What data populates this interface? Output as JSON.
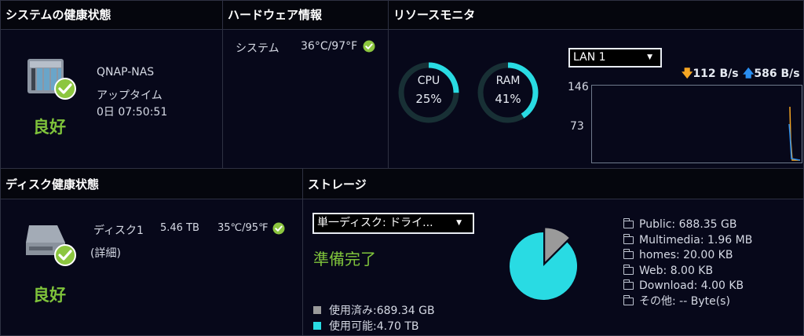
{
  "system_health": {
    "title": "システムの健康状態",
    "device_name": "QNAP-NAS",
    "uptime_label": "アップタイム",
    "uptime_value": "0日 07:50:51",
    "status": "良好"
  },
  "hardware": {
    "title": "ハードウェア情報",
    "system_label": "システム",
    "system_temp": "36°C/97°F"
  },
  "resource_monitor": {
    "title": "リソースモニタ",
    "cpu_label": "CPU",
    "cpu_value": "25%",
    "cpu_pct": 25,
    "ram_label": "RAM",
    "ram_value": "41%",
    "ram_pct": 41,
    "network_select": "LAN 1",
    "download_rate": "112 B/s",
    "upload_rate": "586 B/s",
    "y_max_label": "146",
    "y_mid_label": "73"
  },
  "disk_health": {
    "title": "ディスク健康状態",
    "disk_name": "ディスク1",
    "disk_size": "5.46 TB",
    "disk_temp": "35℃/95℉",
    "details_link": "(詳細)",
    "status": "良好"
  },
  "storage": {
    "title": "ストレージ",
    "volume_select": "単一ディスク: ドライ...",
    "status": "準備完了",
    "used_label": "使用済み:689.34 GB",
    "free_label": "使用可能:4.70 TB",
    "used_pct": 12.5,
    "folders": [
      "Public: 688.35 GB",
      "Multimedia: 1.96 MB",
      "homes: 20.00 KB",
      "Web: 8.00 KB",
      "Download: 4.00 KB",
      "その他: -- Byte(s)"
    ]
  },
  "colors": {
    "good": "#7fc33b",
    "accent": "#29dbe3",
    "used": "#9a9a9a",
    "download": "#f5a623",
    "upload": "#2a8ef0"
  }
}
